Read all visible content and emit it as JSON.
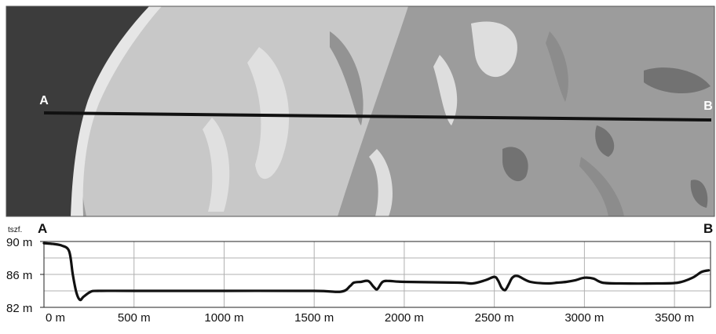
{
  "map": {
    "label_a": "A",
    "label_b": "B",
    "colors": {
      "sea": "#3c3c3c",
      "beach": "#e6e6e6",
      "light_grey": "#c8c8c8",
      "mid_grey": "#9c9c9c",
      "dark_grey": "#6e6e6e",
      "transect_line": "#111111"
    }
  },
  "chart_data": {
    "type": "line",
    "title": "",
    "xlabel": "",
    "ylabel": "tszf.",
    "start_label": "A",
    "end_label": "B",
    "xlim": [
      0,
      3700
    ],
    "ylim": [
      82,
      90
    ],
    "grid": true,
    "x_ticks": [
      0,
      500,
      1000,
      1500,
      2000,
      2500,
      3000,
      3500
    ],
    "x_tick_labels": [
      "0 m",
      "500 m",
      "1000 m",
      "1500 m",
      "2000 m",
      "2500 m",
      "3000 m",
      "3500 m"
    ],
    "y_ticks": [
      82,
      86,
      90
    ],
    "y_tick_labels": [
      "82 m",
      "86 m",
      "90 m"
    ],
    "series": [
      {
        "color": "#111111",
        "x": [
          0,
          50,
          100,
          140,
          160,
          180,
          200,
          220,
          260,
          300,
          500,
          1000,
          1500,
          1650,
          1700,
          1720,
          1760,
          1800,
          1830,
          1850,
          1880,
          1920,
          2000,
          2300,
          2380,
          2450,
          2500,
          2520,
          2540,
          2560,
          2580,
          2600,
          2630,
          2700,
          2800,
          2850,
          2900,
          2950,
          3000,
          3050,
          3100,
          3200,
          3400,
          3520,
          3600,
          3650,
          3690
        ],
        "y": [
          89.8,
          89.7,
          89.5,
          88.8,
          86.0,
          83.8,
          82.9,
          83.3,
          83.9,
          84.0,
          84.0,
          84.0,
          84.0,
          83.9,
          84.6,
          85.0,
          85.1,
          85.2,
          84.5,
          84.2,
          85.1,
          85.2,
          85.1,
          85.0,
          84.9,
          85.3,
          85.7,
          85.3,
          84.4,
          84.1,
          84.8,
          85.6,
          85.8,
          85.1,
          84.9,
          85.0,
          85.1,
          85.3,
          85.6,
          85.5,
          85.0,
          84.9,
          84.9,
          85.0,
          85.6,
          86.3,
          86.5
        ]
      }
    ]
  }
}
